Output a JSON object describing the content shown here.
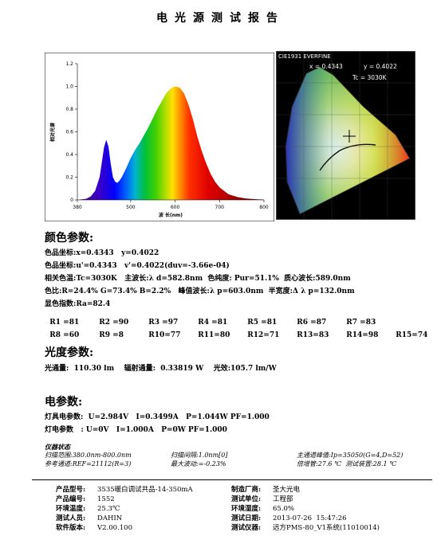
{
  "report_title": "电光源测试报告",
  "spectrum": {
    "y_label": "相对光谱",
    "x_label": "波 长(nm)",
    "x_ticks": [
      "380",
      "500",
      "600",
      "700",
      "800"
    ],
    "y_ticks": [
      "0",
      "0.2",
      "0.4",
      "0.6",
      "0.8",
      "1.0",
      "1.2"
    ]
  },
  "chart_data": {
    "type": "line",
    "title": "",
    "xlabel": "波 长(nm)",
    "ylabel": "相对光谱",
    "xlim": [
      380,
      800
    ],
    "ylim": [
      0,
      1.2
    ],
    "x": [
      380,
      400,
      410,
      420,
      430,
      440,
      445,
      450,
      455,
      460,
      465,
      470,
      475,
      480,
      490,
      500,
      510,
      520,
      530,
      540,
      550,
      560,
      570,
      580,
      590,
      600,
      610,
      620,
      630,
      640,
      650,
      660,
      670,
      680,
      690,
      700,
      720,
      740,
      760,
      780,
      800
    ],
    "values": [
      0,
      0.01,
      0.03,
      0.08,
      0.2,
      0.46,
      0.53,
      0.47,
      0.32,
      0.2,
      0.16,
      0.15,
      0.17,
      0.2,
      0.28,
      0.37,
      0.44,
      0.5,
      0.57,
      0.64,
      0.72,
      0.8,
      0.87,
      0.94,
      0.98,
      1.0,
      0.99,
      0.94,
      0.84,
      0.71,
      0.56,
      0.43,
      0.32,
      0.23,
      0.16,
      0.11,
      0.05,
      0.025,
      0.012,
      0.006,
      0.003
    ]
  },
  "cie": {
    "label": "CIE1931 EVERFINE",
    "x_text": "x = 0.4343",
    "y_text": "y = 0.4022",
    "tc_text": "Tc = 3030K"
  },
  "color_params": {
    "heading": "颜色参数:",
    "lines": [
      "色品坐标:x=0.4343   y=0.4022",
      "色品坐标:u'=0.4343   v'=0.4022(duv=-3.66e-04)",
      "相关色温:Tc=3030K   主波长:λ d=582.8nm  色纯度: Pur=51.1%  质心波长:589.0nm",
      "色比:R=24.4% G=73.4% B=2.2%   峰值波长:λ p=603.0nm  半宽度:Δ λ p=132.0nm",
      "显色指数:Ra=82.4"
    ],
    "ri_row1": [
      "R1 =81",
      "R2 =90",
      "R3 =97",
      "R4 =81",
      "R5 =81",
      "R6 =87",
      "R7 =83"
    ],
    "ri_row2": [
      "R8 =60",
      "R9 =8",
      "R10=77",
      "R11=80",
      "R12=71",
      "R13=83",
      "R14=98",
      "R15=74"
    ]
  },
  "photometric": {
    "heading": "光度参数:",
    "line": "光通量:  110.30 lm    辐射通量:  0.33819 W    光效:105.7 lm/W"
  },
  "electric": {
    "heading": "电参数:",
    "line1": "灯具电参数:  U=2.984V   I=0.3499A   P=1.044W PF=1.000",
    "line2": "灯电参数   : U=0V   I=1.000A   P=0W PF=1.000"
  },
  "instrument": {
    "heading": "仪器状态",
    "range": "扫描范围:380.0nm-800.0nm",
    "interval": "扫描间隔:1.0nm[0]",
    "peak": "主通道峰值:Ip=35050(G=4,D=52)",
    "ref": "参考通道:REF=21112(R=3)",
    "fluct": "最大波动:=-0.23%",
    "gain": "倍增管:27.6 ℃  测试装置:28.1 ℃"
  },
  "footer": {
    "rows": [
      [
        "产品型号:",
        "3535暖白调试共品-14-350mA",
        "制造厂商:",
        "圣大光电"
      ],
      [
        "产品编号:",
        "1552",
        "测试单位:",
        "工程部"
      ],
      [
        "环境温度:",
        "25.3℃",
        "环境湿度:",
        "65.0%"
      ],
      [
        "测试人员:",
        "DAHIN",
        "测试日期:",
        "2013-07-26  15:47:26"
      ],
      [
        "软件版本:",
        "V2.00.100",
        "测试仪器:",
        "远方PMS-80_V1系统(11010014)"
      ]
    ]
  }
}
